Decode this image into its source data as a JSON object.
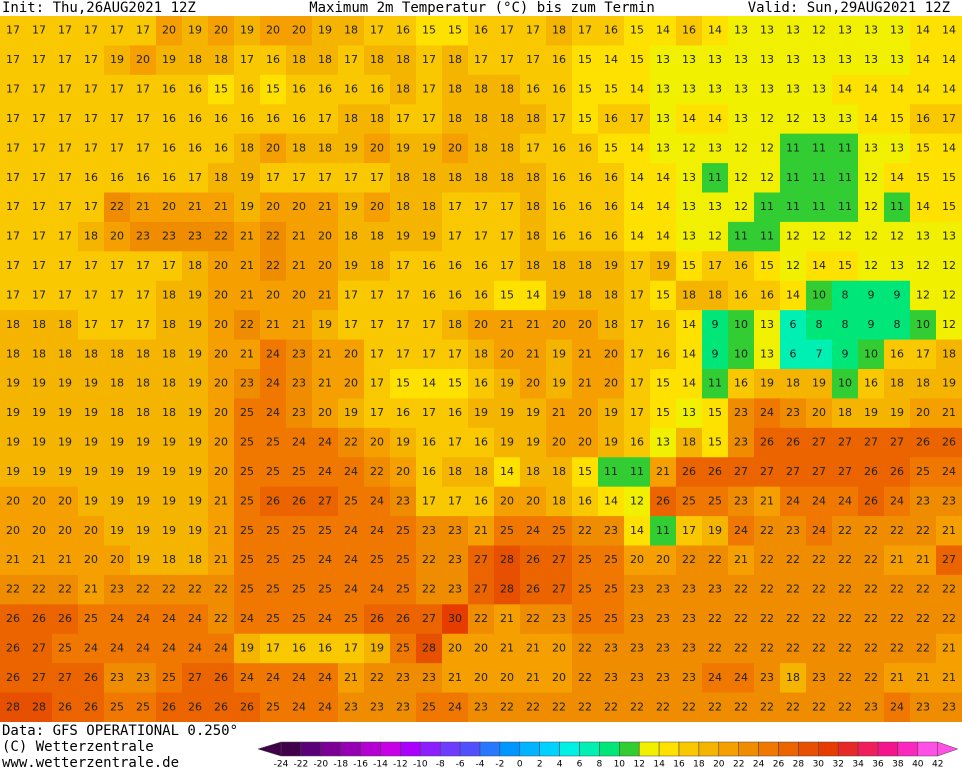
{
  "header": {
    "init": "Init: Thu,26AUG2021 12Z",
    "title": "Maximum 2m Temperatur (°C) bis zum Termin",
    "valid": "Valid: Sun,29AUG2021 12Z"
  },
  "footer": {
    "data": "Data: GFS OPERATIONAL 0.250°",
    "copyright": "(C) Wetterzentrale",
    "url": "www.wetterzentrale.de"
  },
  "colorbar": {
    "levels": [
      -24,
      -22,
      -20,
      -18,
      -16,
      -14,
      -12,
      -10,
      -8,
      -6,
      -4,
      -2,
      0,
      2,
      4,
      6,
      8,
      10,
      12,
      14,
      16,
      18,
      20,
      22,
      24,
      26,
      28,
      30,
      32,
      34,
      36,
      38,
      40,
      42
    ],
    "colors": [
      "#40004a",
      "#5a0078",
      "#7a0096",
      "#9600b4",
      "#b400d2",
      "#c800e6",
      "#aa00ff",
      "#8c1eff",
      "#6e3cff",
      "#5050ff",
      "#2878ff",
      "#0096ff",
      "#00b4ff",
      "#00d2ff",
      "#00f0e6",
      "#00f0b4",
      "#00e678",
      "#32cd32",
      "#f0f000",
      "#ffe100",
      "#fac800",
      "#f5b400",
      "#f5a000",
      "#f08c00",
      "#f07800",
      "#eb6400",
      "#e65000",
      "#e63c00",
      "#e62828",
      "#f01e5a",
      "#f5148c",
      "#fa28be",
      "#ff50e6"
    ]
  },
  "grid": {
    "rows": [
      [
        17,
        17,
        17,
        17,
        17,
        17,
        20,
        19,
        20,
        19,
        20,
        20,
        19,
        18,
        17,
        16,
        15,
        15,
        16,
        17,
        17,
        18,
        17,
        16,
        15,
        14,
        16,
        14,
        13,
        13,
        13,
        12,
        13,
        13,
        13,
        14,
        14
      ],
      [
        17,
        17,
        17,
        17,
        19,
        20,
        19,
        18,
        18,
        17,
        16,
        18,
        18,
        17,
        18,
        18,
        17,
        18,
        17,
        17,
        17,
        16,
        15,
        14,
        15,
        13,
        13,
        13,
        13,
        13,
        13,
        13,
        13,
        13,
        13,
        14,
        14
      ],
      [
        17,
        17,
        17,
        17,
        17,
        17,
        16,
        16,
        15,
        16,
        15,
        16,
        16,
        16,
        16,
        18,
        17,
        18,
        18,
        18,
        16,
        16,
        15,
        15,
        14,
        13,
        13,
        13,
        13,
        13,
        13,
        13,
        14,
        14,
        14,
        14,
        14
      ],
      [
        17,
        17,
        17,
        17,
        17,
        17,
        16,
        16,
        16,
        16,
        16,
        16,
        17,
        18,
        18,
        17,
        17,
        18,
        18,
        18,
        18,
        17,
        15,
        16,
        17,
        13,
        14,
        14,
        13,
        12,
        12,
        13,
        13,
        14,
        15,
        16,
        17
      ],
      [
        17,
        17,
        17,
        17,
        17,
        17,
        16,
        16,
        16,
        18,
        20,
        18,
        18,
        19,
        20,
        19,
        19,
        20,
        18,
        18,
        17,
        16,
        16,
        15,
        14,
        13,
        12,
        13,
        12,
        12,
        11,
        11,
        11,
        13,
        13,
        15,
        14
      ],
      [
        17,
        17,
        17,
        16,
        16,
        16,
        16,
        17,
        18,
        19,
        17,
        17,
        17,
        17,
        17,
        18,
        18,
        18,
        18,
        18,
        18,
        16,
        16,
        16,
        14,
        14,
        13,
        11,
        12,
        12,
        11,
        11,
        11,
        12,
        14,
        15,
        15
      ],
      [
        17,
        17,
        17,
        17,
        22,
        21,
        20,
        21,
        21,
        19,
        20,
        20,
        21,
        19,
        20,
        18,
        18,
        17,
        17,
        17,
        18,
        16,
        16,
        16,
        14,
        14,
        13,
        13,
        12,
        11,
        11,
        11,
        11,
        12,
        11,
        14,
        15
      ],
      [
        17,
        17,
        17,
        18,
        20,
        23,
        23,
        23,
        22,
        21,
        22,
        21,
        20,
        18,
        18,
        19,
        19,
        17,
        17,
        17,
        18,
        16,
        16,
        16,
        14,
        14,
        13,
        12,
        11,
        11,
        12,
        12,
        12,
        12,
        12,
        13,
        13
      ],
      [
        17,
        17,
        17,
        17,
        17,
        17,
        17,
        18,
        20,
        21,
        22,
        21,
        20,
        19,
        18,
        17,
        16,
        16,
        16,
        17,
        18,
        18,
        18,
        19,
        17,
        19,
        15,
        17,
        16,
        15,
        12,
        14,
        15,
        12,
        13,
        12,
        12
      ],
      [
        17,
        17,
        17,
        17,
        17,
        17,
        18,
        19,
        20,
        21,
        20,
        20,
        21,
        17,
        17,
        17,
        16,
        16,
        16,
        15,
        14,
        19,
        18,
        18,
        17,
        15,
        18,
        18,
        16,
        16,
        14,
        10,
        8,
        9,
        9,
        12,
        12
      ],
      [
        18,
        18,
        18,
        17,
        17,
        17,
        18,
        19,
        20,
        22,
        21,
        21,
        19,
        17,
        17,
        17,
        17,
        18,
        20,
        21,
        21,
        20,
        20,
        18,
        17,
        16,
        14,
        9,
        10,
        13,
        6,
        8,
        8,
        9,
        8,
        10,
        12
      ],
      [
        18,
        18,
        18,
        18,
        18,
        18,
        18,
        19,
        20,
        21,
        24,
        23,
        21,
        20,
        17,
        17,
        17,
        17,
        18,
        20,
        21,
        19,
        21,
        20,
        17,
        16,
        14,
        9,
        10,
        13,
        6,
        7,
        9,
        10,
        16,
        17,
        18
      ],
      [
        19,
        19,
        19,
        19,
        18,
        18,
        18,
        19,
        20,
        23,
        24,
        23,
        21,
        20,
        17,
        15,
        14,
        15,
        16,
        19,
        20,
        19,
        21,
        20,
        17,
        15,
        14,
        11,
        16,
        19,
        18,
        19,
        10,
        16,
        18,
        18,
        19
      ],
      [
        19,
        19,
        19,
        19,
        18,
        18,
        18,
        19,
        20,
        25,
        24,
        23,
        20,
        19,
        17,
        16,
        17,
        16,
        19,
        19,
        19,
        21,
        20,
        19,
        17,
        15,
        13,
        15,
        23,
        24,
        23,
        20,
        18,
        19,
        19,
        20,
        21
      ],
      [
        19,
        19,
        19,
        19,
        19,
        19,
        19,
        19,
        20,
        25,
        25,
        24,
        24,
        22,
        20,
        19,
        16,
        17,
        16,
        19,
        19,
        20,
        20,
        19,
        16,
        13,
        18,
        15,
        23,
        26,
        26,
        27,
        27,
        27,
        27,
        26,
        26
      ],
      [
        19,
        19,
        19,
        19,
        19,
        19,
        19,
        19,
        20,
        25,
        25,
        25,
        24,
        24,
        22,
        20,
        16,
        18,
        18,
        14,
        18,
        18,
        15,
        11,
        11,
        21,
        26,
        26,
        27,
        27,
        27,
        27,
        27,
        26,
        26,
        25,
        24
      ],
      [
        20,
        20,
        20,
        19,
        19,
        19,
        19,
        19,
        21,
        25,
        26,
        26,
        27,
        25,
        24,
        23,
        17,
        17,
        16,
        20,
        20,
        18,
        16,
        14,
        12,
        26,
        25,
        25,
        23,
        21,
        24,
        24,
        24,
        26,
        24,
        23,
        23
      ],
      [
        20,
        20,
        20,
        20,
        19,
        19,
        19,
        19,
        21,
        25,
        25,
        25,
        25,
        24,
        24,
        25,
        23,
        23,
        21,
        25,
        24,
        25,
        22,
        23,
        14,
        11,
        17,
        19,
        24,
        22,
        23,
        24,
        22,
        22,
        22,
        22,
        21
      ],
      [
        21,
        21,
        21,
        20,
        20,
        19,
        18,
        18,
        21,
        25,
        25,
        25,
        24,
        24,
        25,
        25,
        22,
        23,
        27,
        28,
        26,
        27,
        25,
        25,
        20,
        20,
        22,
        22,
        21,
        22,
        22,
        22,
        22,
        22,
        21,
        21,
        27
      ],
      [
        22,
        22,
        22,
        21,
        23,
        22,
        22,
        22,
        22,
        25,
        25,
        25,
        25,
        24,
        24,
        25,
        22,
        23,
        27,
        28,
        26,
        27,
        25,
        25,
        23,
        23,
        23,
        23,
        22,
        22,
        22,
        22,
        22,
        22,
        22,
        22,
        22
      ],
      [
        26,
        26,
        26,
        25,
        24,
        24,
        24,
        24,
        22,
        24,
        25,
        25,
        24,
        25,
        26,
        26,
        27,
        30,
        22,
        21,
        22,
        23,
        25,
        25,
        23,
        23,
        23,
        22,
        22,
        22,
        22,
        22,
        22,
        22,
        22,
        22,
        22
      ],
      [
        26,
        27,
        25,
        24,
        24,
        24,
        24,
        24,
        24,
        19,
        17,
        16,
        16,
        17,
        19,
        25,
        28,
        20,
        20,
        21,
        21,
        20,
        22,
        23,
        23,
        23,
        23,
        22,
        22,
        22,
        22,
        22,
        22,
        22,
        22,
        22,
        21
      ],
      [
        26,
        27,
        27,
        26,
        23,
        23,
        25,
        27,
        26,
        24,
        24,
        24,
        24,
        21,
        22,
        23,
        23,
        21,
        20,
        20,
        21,
        20,
        22,
        23,
        23,
        23,
        23,
        24,
        24,
        23,
        18,
        23,
        22,
        22,
        21,
        21,
        21
      ],
      [
        28,
        28,
        26,
        26,
        25,
        25,
        26,
        26,
        26,
        26,
        25,
        24,
        24,
        23,
        23,
        23,
        25,
        24,
        23,
        22,
        22,
        22,
        22,
        22,
        22,
        22,
        22,
        22,
        22,
        22,
        22,
        22,
        22,
        23,
        24,
        23,
        23
      ]
    ]
  }
}
